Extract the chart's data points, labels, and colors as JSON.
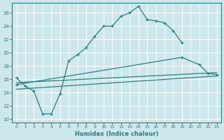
{
  "xlabel": "Humidex (Indice chaleur)",
  "bg_color": "#cde8ec",
  "grid_color": "#ffffff",
  "line_color": "#2a7f7f",
  "xlim": [
    -0.5,
    23.5
  ],
  "ylim": [
    9.5,
    27.5
  ],
  "xticks": [
    0,
    1,
    2,
    3,
    4,
    5,
    6,
    7,
    8,
    9,
    10,
    11,
    12,
    13,
    14,
    15,
    16,
    17,
    18,
    19,
    20,
    21,
    22,
    23
  ],
  "yticks": [
    10,
    12,
    14,
    16,
    18,
    20,
    22,
    24,
    26
  ],
  "line1_x": [
    0,
    1,
    2,
    3,
    4,
    5,
    6,
    7,
    8,
    9,
    10,
    11,
    12,
    13,
    14,
    15,
    16,
    17,
    18,
    19
  ],
  "line1_y": [
    16.2,
    15.0,
    14.2,
    10.8,
    10.8,
    13.8,
    18.8,
    19.7,
    20.8,
    22.5,
    24.0,
    24.0,
    25.5,
    26.0,
    27.0,
    25.0,
    24.8,
    24.5,
    23.3,
    21.5
  ],
  "line2_x": [
    0,
    23
  ],
  "line2_y": [
    15.5,
    17.0
  ],
  "line3_x": [
    0,
    19,
    21,
    22,
    23
  ],
  "line3_y": [
    15.2,
    19.3,
    18.2,
    16.9,
    16.7
  ],
  "line4_x": [
    0,
    23
  ],
  "line4_y": [
    14.5,
    16.5
  ]
}
